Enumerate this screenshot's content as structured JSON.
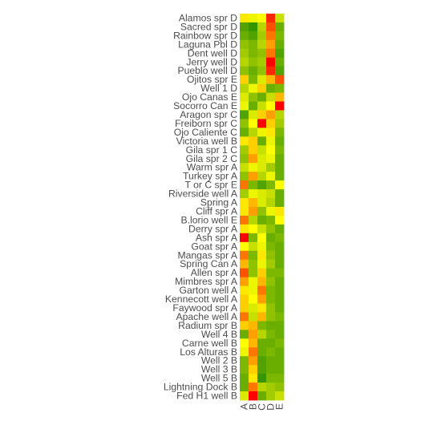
{
  "chart_data": {
    "type": "heatmap",
    "columns": [
      "A",
      "B",
      "C",
      "D",
      "E"
    ],
    "rows": [
      "Alamos spr D",
      "Sacred spr D",
      "Rainbow spr D",
      "Laguna Pbl D",
      "Dent well D",
      "Jerry well D",
      "Pueblo well D",
      "Ojitos spr E",
      "Well 1 D",
      "Ojo Canas E",
      "Socorro Can E",
      "Aragon spr C",
      "Freiborn spr C",
      "Ojo Caliente C",
      "Victoria well B",
      "Gila spr 1 C",
      "Gila spr 2 C",
      "Warm spr A",
      "Turkey spr A",
      "T or C spr E",
      "Riverside well A",
      "Spring A",
      "Cliff spr A",
      "B.lorio well E",
      "Derry spr A",
      "Ash spr A",
      "Goat spr A",
      "Mangas spr A",
      "Spring Can A",
      "Allen spr A",
      "Mimbres spr A",
      "Garton well A",
      "Kennecott well A",
      "Faywood spr A",
      "Apache well A",
      "Radium spr B",
      "Well 4 B",
      "Carne well B",
      "Los Alturas B",
      "Well 2 B",
      "Well 3 B",
      "Well 5 B",
      "Lightning Dock B",
      "Fed H1 well B"
    ],
    "values": [
      [
        0.65,
        0.55,
        0.6,
        0.95,
        0.45
      ],
      [
        0.15,
        0.1,
        0.4,
        0.9,
        0.2
      ],
      [
        0.2,
        0.15,
        0.35,
        0.85,
        0.25
      ],
      [
        0.3,
        0.25,
        0.4,
        0.8,
        0.2
      ],
      [
        0.35,
        0.25,
        0.3,
        0.85,
        0.15
      ],
      [
        0.4,
        0.3,
        0.35,
        1.0,
        0.2
      ],
      [
        0.3,
        0.2,
        0.3,
        0.95,
        0.15
      ],
      [
        0.7,
        0.25,
        0.5,
        0.75,
        0.9
      ],
      [
        0.4,
        0.55,
        0.7,
        0.2,
        0.25
      ],
      [
        0.5,
        0.3,
        0.2,
        0.45,
        0.75
      ],
      [
        0.55,
        0.2,
        0.45,
        0.6,
        1.0
      ],
      [
        0.15,
        0.5,
        0.7,
        0.8,
        0.4
      ],
      [
        0.3,
        0.6,
        1.0,
        0.7,
        0.35
      ],
      [
        0.2,
        0.4,
        0.55,
        0.65,
        0.25
      ],
      [
        0.65,
        0.7,
        0.2,
        0.55,
        0.2
      ],
      [
        0.35,
        0.7,
        0.45,
        0.6,
        0.25
      ],
      [
        0.3,
        0.8,
        0.5,
        0.55,
        0.2
      ],
      [
        0.45,
        0.55,
        0.5,
        0.35,
        0.2
      ],
      [
        0.3,
        0.8,
        0.4,
        0.55,
        0.2
      ],
      [
        0.85,
        0.25,
        0.15,
        0.25,
        0.6
      ],
      [
        0.35,
        0.55,
        0.5,
        0.45,
        0.2
      ],
      [
        0.65,
        0.75,
        0.5,
        0.4,
        0.2
      ],
      [
        0.65,
        0.8,
        0.3,
        0.55,
        0.65
      ],
      [
        0.85,
        0.4,
        0.2,
        0.25,
        0.6
      ],
      [
        0.65,
        0.6,
        0.45,
        0.3,
        0.2
      ],
      [
        1.0,
        0.25,
        0.6,
        0.2,
        0.25
      ],
      [
        0.6,
        0.45,
        0.55,
        0.25,
        0.2
      ],
      [
        0.85,
        0.25,
        0.65,
        0.3,
        0.2
      ],
      [
        0.75,
        0.3,
        0.55,
        0.35,
        0.2
      ],
      [
        0.9,
        0.3,
        0.7,
        0.25,
        0.25
      ],
      [
        0.8,
        0.55,
        0.75,
        0.3,
        0.2
      ],
      [
        0.65,
        0.55,
        0.85,
        0.25,
        0.2
      ],
      [
        0.7,
        0.6,
        0.8,
        0.25,
        0.2
      ],
      [
        0.7,
        0.5,
        0.65,
        0.3,
        0.2
      ],
      [
        0.85,
        0.45,
        0.75,
        0.3,
        0.25
      ],
      [
        0.7,
        0.75,
        0.25,
        0.2,
        0.2
      ],
      [
        0.2,
        0.8,
        0.4,
        0.25,
        0.2
      ],
      [
        0.6,
        0.75,
        0.2,
        0.2,
        0.25
      ],
      [
        0.55,
        0.85,
        0.2,
        0.25,
        0.2
      ],
      [
        0.25,
        0.8,
        0.15,
        0.2,
        0.2
      ],
      [
        0.25,
        0.7,
        0.15,
        0.2,
        0.2
      ],
      [
        0.2,
        0.65,
        0.1,
        0.25,
        0.25
      ],
      [
        0.2,
        0.85,
        0.4,
        0.35,
        0.3
      ],
      [
        0.5,
        1.0,
        0.2,
        0.35,
        0.45
      ]
    ],
    "color_scale": [
      "#008000",
      "#6aae00",
      "#b5d600",
      "#ffff00",
      "#ff9f00",
      "#ff0000"
    ],
    "title": "",
    "xlabel": "",
    "ylabel": "",
    "grid": false,
    "legend": "none"
  }
}
